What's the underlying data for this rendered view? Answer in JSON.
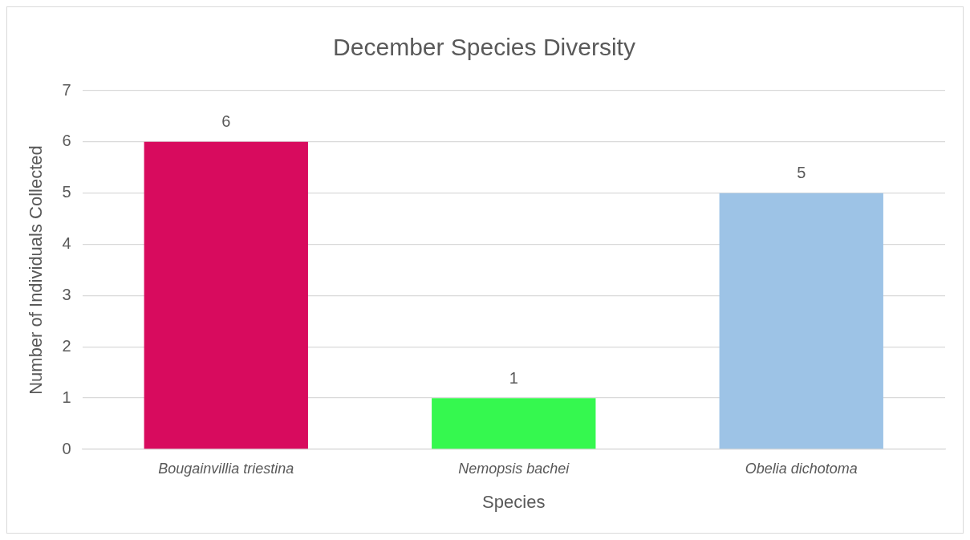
{
  "chart_data": {
    "type": "bar",
    "title": "December Species Diversity",
    "xlabel": "Species",
    "ylabel": "Number of Individuals Collected",
    "categories": [
      "Bougainvillia triestina",
      "Nemopsis bachei",
      "Obelia dichotoma"
    ],
    "values": [
      6,
      1,
      5
    ],
    "colors": [
      "#d80b5e",
      "#35f84f",
      "#9dc3e6"
    ],
    "ylim": [
      0,
      7
    ],
    "yticks": [
      0,
      1,
      2,
      3,
      4,
      5,
      6,
      7
    ],
    "grid": "y",
    "legend": false,
    "data_labels": true
  }
}
